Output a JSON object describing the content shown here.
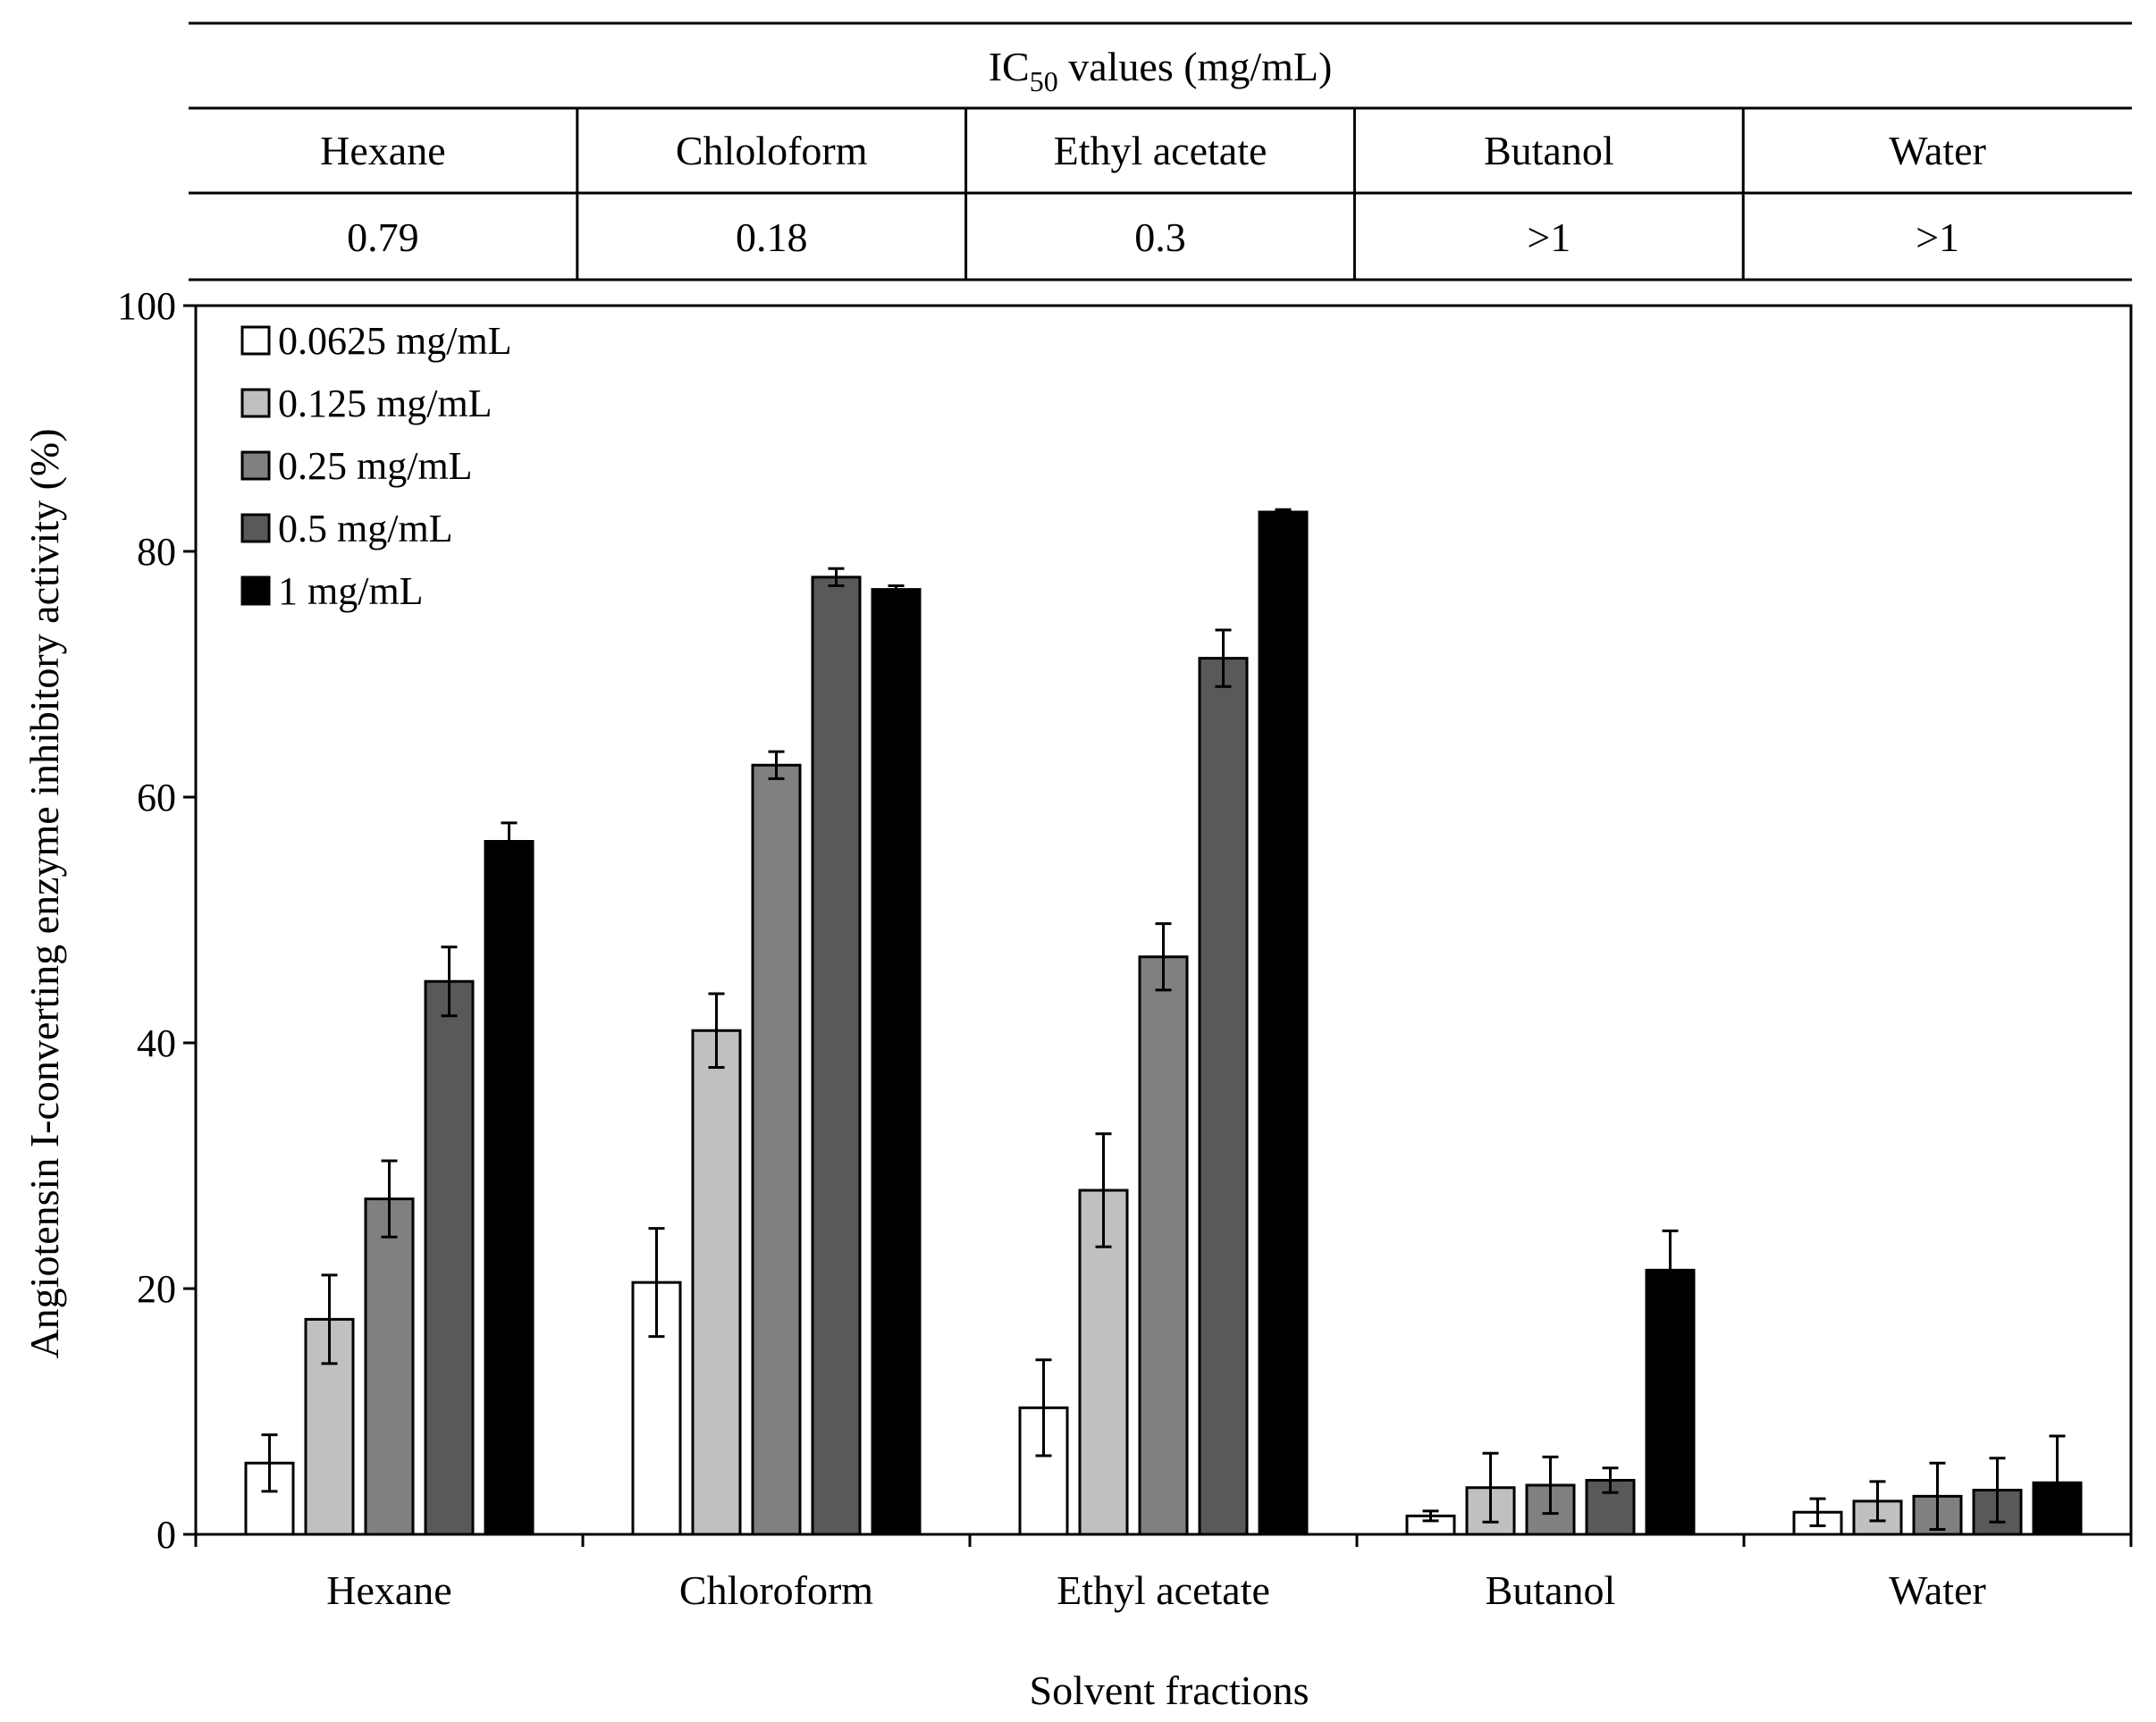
{
  "ic50_table": {
    "title_main": "IC",
    "title_sub": "50",
    "title_rest": " values (mg/mL)",
    "headers": [
      "Hexane",
      "Chloloform",
      "Ethyl acetate",
      "Butanol",
      "Water"
    ],
    "values": [
      "0.79",
      "0.18",
      "0.3",
      ">1",
      ">1"
    ]
  },
  "chart_data": {
    "type": "bar",
    "title": "",
    "xlabel": "Solvent fractions",
    "ylabel": "Angiotensin I-converting enzyme inhibitory activity (%)",
    "ylim": [
      0,
      100
    ],
    "yticks": [
      0,
      20,
      40,
      60,
      80,
      100
    ],
    "ytick_labels": [
      "0",
      "20",
      "40",
      "60",
      "80",
      "100"
    ],
    "categories": [
      "Hexane",
      "Chloroform",
      "Ethyl acetate",
      "Butanol",
      "Water"
    ],
    "legend_position": "top-left",
    "series": [
      {
        "name": "0.0625 mg/mL",
        "color": "#ffffff",
        "values": [
          5.8,
          20.5,
          10.3,
          1.5,
          1.8
        ],
        "errors": [
          2.3,
          4.4,
          3.9,
          0.4,
          1.1
        ]
      },
      {
        "name": "0.125 mg/mL",
        "color": "#c0c0c0",
        "values": [
          17.5,
          41.0,
          28.0,
          3.8,
          2.7
        ],
        "errors": [
          3.6,
          3.0,
          4.6,
          2.8,
          1.6
        ]
      },
      {
        "name": "0.25 mg/mL",
        "color": "#808080",
        "values": [
          27.3,
          62.6,
          47.0,
          4.0,
          3.1
        ],
        "errors": [
          3.1,
          1.1,
          2.7,
          2.3,
          2.7
        ]
      },
      {
        "name": "0.5 mg/mL",
        "color": "#595959",
        "values": [
          45.0,
          77.9,
          71.3,
          4.4,
          3.6
        ],
        "errors": [
          2.8,
          0.7,
          2.3,
          1.0,
          2.6
        ]
      },
      {
        "name": "1 mg/mL",
        "color": "#000000",
        "values": [
          56.4,
          76.9,
          83.2,
          21.5,
          4.2
        ],
        "errors": [
          1.5,
          0.3,
          0.2,
          3.2,
          3.8
        ]
      }
    ]
  }
}
